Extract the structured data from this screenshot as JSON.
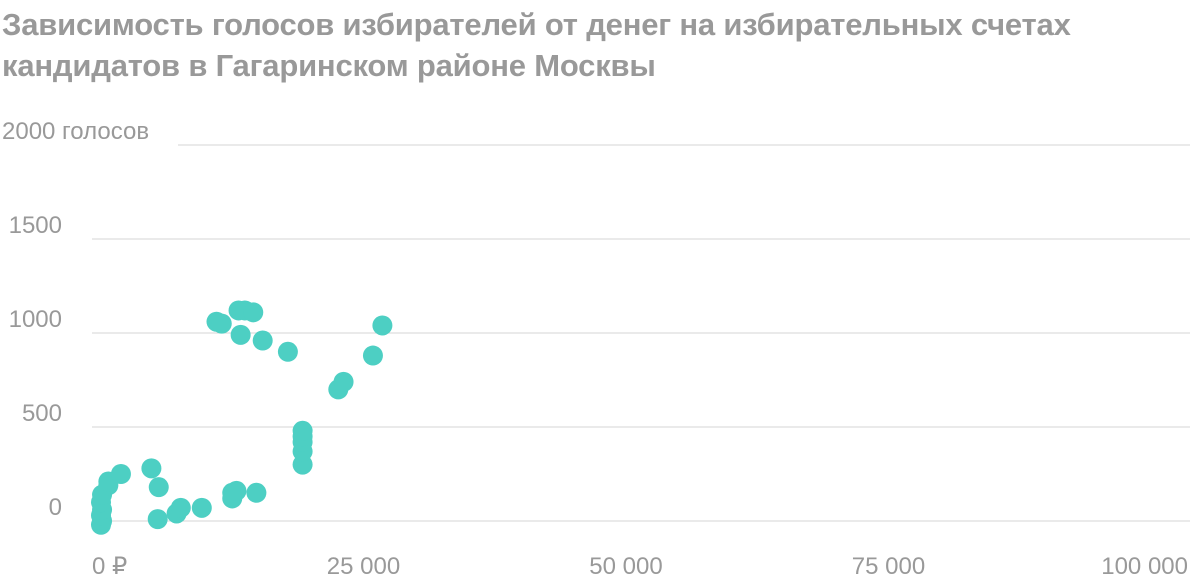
{
  "chart_data": {
    "type": "scatter",
    "title": "Зависимость голосов избирателей от денег на избирательных счетах кандидатов в Гагаринском районе Москвы",
    "xlabel": "",
    "ylabel": "",
    "xlim": [
      0,
      100000
    ],
    "ylim": [
      0,
      2000
    ],
    "grid": true,
    "point_color": "#4dcfc3",
    "x_ticks": [
      {
        "value": 0,
        "label": "0 ₽"
      },
      {
        "value": 25000,
        "label": "25 000"
      },
      {
        "value": 50000,
        "label": "50 000"
      },
      {
        "value": 75000,
        "label": "75 000"
      },
      {
        "value": 100000,
        "label": "100 000"
      }
    ],
    "y_ticks": [
      {
        "value": 0,
        "label": "0"
      },
      {
        "value": 500,
        "label": "500"
      },
      {
        "value": 1000,
        "label": "1000"
      },
      {
        "value": 1500,
        "label": "1500"
      },
      {
        "value": 2000,
        "label": "2000 голосов"
      }
    ],
    "points": [
      {
        "x": 0,
        "y": -20
      },
      {
        "x": 100,
        "y": 0
      },
      {
        "x": 0,
        "y": 30
      },
      {
        "x": 100,
        "y": 60
      },
      {
        "x": 0,
        "y": 100
      },
      {
        "x": 100,
        "y": 140
      },
      {
        "x": 700,
        "y": 190
      },
      {
        "x": 700,
        "y": 210
      },
      {
        "x": 1900,
        "y": 250
      },
      {
        "x": 4800,
        "y": 280
      },
      {
        "x": 5500,
        "y": 180
      },
      {
        "x": 5400,
        "y": 10
      },
      {
        "x": 7200,
        "y": 40
      },
      {
        "x": 7600,
        "y": 70
      },
      {
        "x": 9600,
        "y": 70
      },
      {
        "x": 12500,
        "y": 120
      },
      {
        "x": 12500,
        "y": 150
      },
      {
        "x": 12900,
        "y": 160
      },
      {
        "x": 14800,
        "y": 150
      },
      {
        "x": 19200,
        "y": 300
      },
      {
        "x": 19200,
        "y": 370
      },
      {
        "x": 19200,
        "y": 420
      },
      {
        "x": 19200,
        "y": 450
      },
      {
        "x": 19200,
        "y": 480
      },
      {
        "x": 11000,
        "y": 1060
      },
      {
        "x": 11500,
        "y": 1050
      },
      {
        "x": 13100,
        "y": 1120
      },
      {
        "x": 13700,
        "y": 1120
      },
      {
        "x": 14500,
        "y": 1110
      },
      {
        "x": 13300,
        "y": 990
      },
      {
        "x": 15400,
        "y": 960
      },
      {
        "x": 17800,
        "y": 900
      },
      {
        "x": 22600,
        "y": 700
      },
      {
        "x": 23100,
        "y": 740
      },
      {
        "x": 25900,
        "y": 880
      },
      {
        "x": 26800,
        "y": 1040
      }
    ]
  }
}
